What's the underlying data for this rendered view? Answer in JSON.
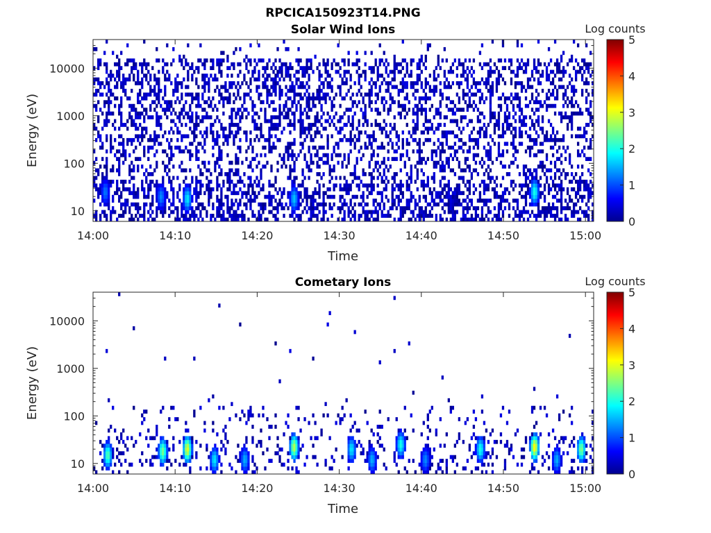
{
  "figure_title": "RPCICA150923T14.PNG",
  "chart_data": [
    {
      "type": "heatmap",
      "title": "Solar Wind Ions",
      "xlabel": "Time",
      "ylabel": "Energy (eV)",
      "x_ticks": [
        "14:00",
        "14:10",
        "14:20",
        "14:30",
        "14:40",
        "14:50",
        "15:00"
      ],
      "y_ticks": [
        {
          "label": "10",
          "value": 10
        },
        {
          "label": "100",
          "value": 100
        },
        {
          "label": "1000",
          "value": 1000
        },
        {
          "label": "10000",
          "value": 10000
        }
      ],
      "y_scale": "log",
      "ylim": [
        6,
        40000
      ],
      "xlim_minutes": [
        0,
        61
      ],
      "colorbar": {
        "label": "Log counts",
        "range": [
          0,
          5
        ],
        "ticks": [
          "0",
          "1",
          "2",
          "3",
          "4",
          "5"
        ],
        "colormap": "jet"
      },
      "hotspots": [
        {
          "time_min": 1.5,
          "energy_ev": 25,
          "log_counts": 1.2
        },
        {
          "time_min": 8.3,
          "energy_ev": 20,
          "log_counts": 1.3
        },
        {
          "time_min": 11.5,
          "energy_ev": 18,
          "log_counts": 1.8
        },
        {
          "time_min": 24.5,
          "energy_ev": 18,
          "log_counts": 1.6
        },
        {
          "time_min": 53.8,
          "energy_ev": 25,
          "log_counts": 2.0
        }
      ]
    },
    {
      "type": "heatmap",
      "title": "Cometary Ions",
      "xlabel": "Time",
      "ylabel": "Energy (eV)",
      "x_ticks": [
        "14:00",
        "14:10",
        "14:20",
        "14:30",
        "14:40",
        "14:50",
        "15:00"
      ],
      "y_ticks": [
        {
          "label": "10",
          "value": 10
        },
        {
          "label": "100",
          "value": 100
        },
        {
          "label": "1000",
          "value": 1000
        },
        {
          "label": "10000",
          "value": 10000
        }
      ],
      "y_scale": "log",
      "ylim": [
        6,
        40000
      ],
      "xlim_minutes": [
        0,
        61
      ],
      "colorbar": {
        "label": "Log counts",
        "range": [
          0,
          5
        ],
        "ticks": [
          "0",
          "1",
          "2",
          "3",
          "4",
          "5"
        ],
        "colormap": "jet"
      },
      "hotspots": [
        {
          "time_min": 1.8,
          "energy_ev": 15,
          "log_counts": 2.3
        },
        {
          "time_min": 8.5,
          "energy_ev": 18,
          "log_counts": 2.5
        },
        {
          "time_min": 11.5,
          "energy_ev": 20,
          "log_counts": 3.0
        },
        {
          "time_min": 14.8,
          "energy_ev": 12,
          "log_counts": 1.8
        },
        {
          "time_min": 18.5,
          "energy_ev": 12,
          "log_counts": 1.5
        },
        {
          "time_min": 24.5,
          "energy_ev": 22,
          "log_counts": 2.8
        },
        {
          "time_min": 31.5,
          "energy_ev": 20,
          "log_counts": 1.8
        },
        {
          "time_min": 34.0,
          "energy_ev": 12,
          "log_counts": 1.5
        },
        {
          "time_min": 37.5,
          "energy_ev": 25,
          "log_counts": 2.0
        },
        {
          "time_min": 40.5,
          "energy_ev": 12,
          "log_counts": 1.3
        },
        {
          "time_min": 47.2,
          "energy_ev": 20,
          "log_counts": 2.0
        },
        {
          "time_min": 53.8,
          "energy_ev": 22,
          "log_counts": 3.2
        },
        {
          "time_min": 56.5,
          "energy_ev": 12,
          "log_counts": 1.5
        },
        {
          "time_min": 59.5,
          "energy_ev": 20,
          "log_counts": 2.5
        }
      ]
    }
  ]
}
